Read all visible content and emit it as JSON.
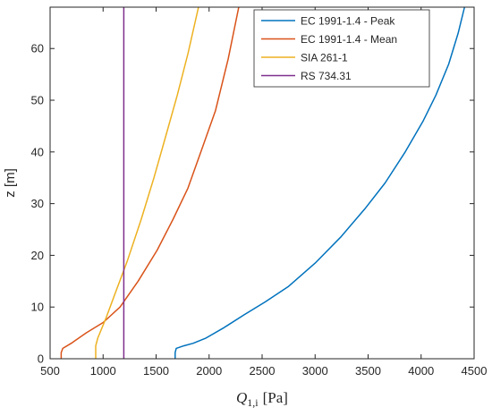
{
  "chart_data": {
    "type": "line",
    "xlabel": "Q1,i [Pa]",
    "xlabel_main": "Q",
    "xlabel_sub": "1,i",
    "xlabel_unit": "[Pa]",
    "ylabel": "z [m]",
    "xlim": [
      500,
      4500
    ],
    "ylim": [
      0,
      68
    ],
    "xticks": [
      500,
      1000,
      1500,
      2000,
      2500,
      3000,
      3500,
      4000,
      4500
    ],
    "yticks": [
      0,
      10,
      20,
      30,
      40,
      50,
      60
    ],
    "grid": false,
    "legend_position": "top-right",
    "series": [
      {
        "name": "EC 1991-1.4 - Peak",
        "color": "#0072BD",
        "x": [
          1680,
          1680,
          1690,
          1760,
          1850,
          1970,
          2140,
          2330,
          2530,
          2750,
          3000,
          3240,
          3470,
          3660,
          3850,
          4020,
          4140,
          4260,
          4350,
          4410
        ],
        "y": [
          0,
          1.2,
          2,
          2.5,
          3,
          4,
          6,
          8.5,
          11,
          14,
          18.5,
          23.5,
          29,
          34,
          40,
          46,
          51,
          57,
          63,
          68
        ]
      },
      {
        "name": "EC 1991-1.4 - Mean",
        "color": "#D95319",
        "x": [
          605,
          605,
          620,
          700,
          840,
          1000,
          1160,
          1330,
          1510,
          1660,
          1800,
          1940,
          2060,
          2180,
          2280
        ],
        "y": [
          0,
          1.2,
          2,
          3,
          5,
          7,
          10,
          15,
          21,
          27,
          33,
          41,
          48,
          58,
          68
        ]
      },
      {
        "name": "SIA 261-1",
        "color": "#EDB120",
        "x": [
          930,
          930,
          950,
          1030,
          1120,
          1230,
          1360,
          1480,
          1590,
          1700,
          1800,
          1900
        ],
        "y": [
          0,
          2.5,
          4,
          8,
          13,
          19,
          27,
          35,
          43,
          51,
          59,
          68
        ]
      },
      {
        "name": "RS 734.31",
        "color": "#7E2F8E",
        "x": [
          1195,
          1195
        ],
        "y": [
          0,
          68
        ]
      }
    ]
  }
}
